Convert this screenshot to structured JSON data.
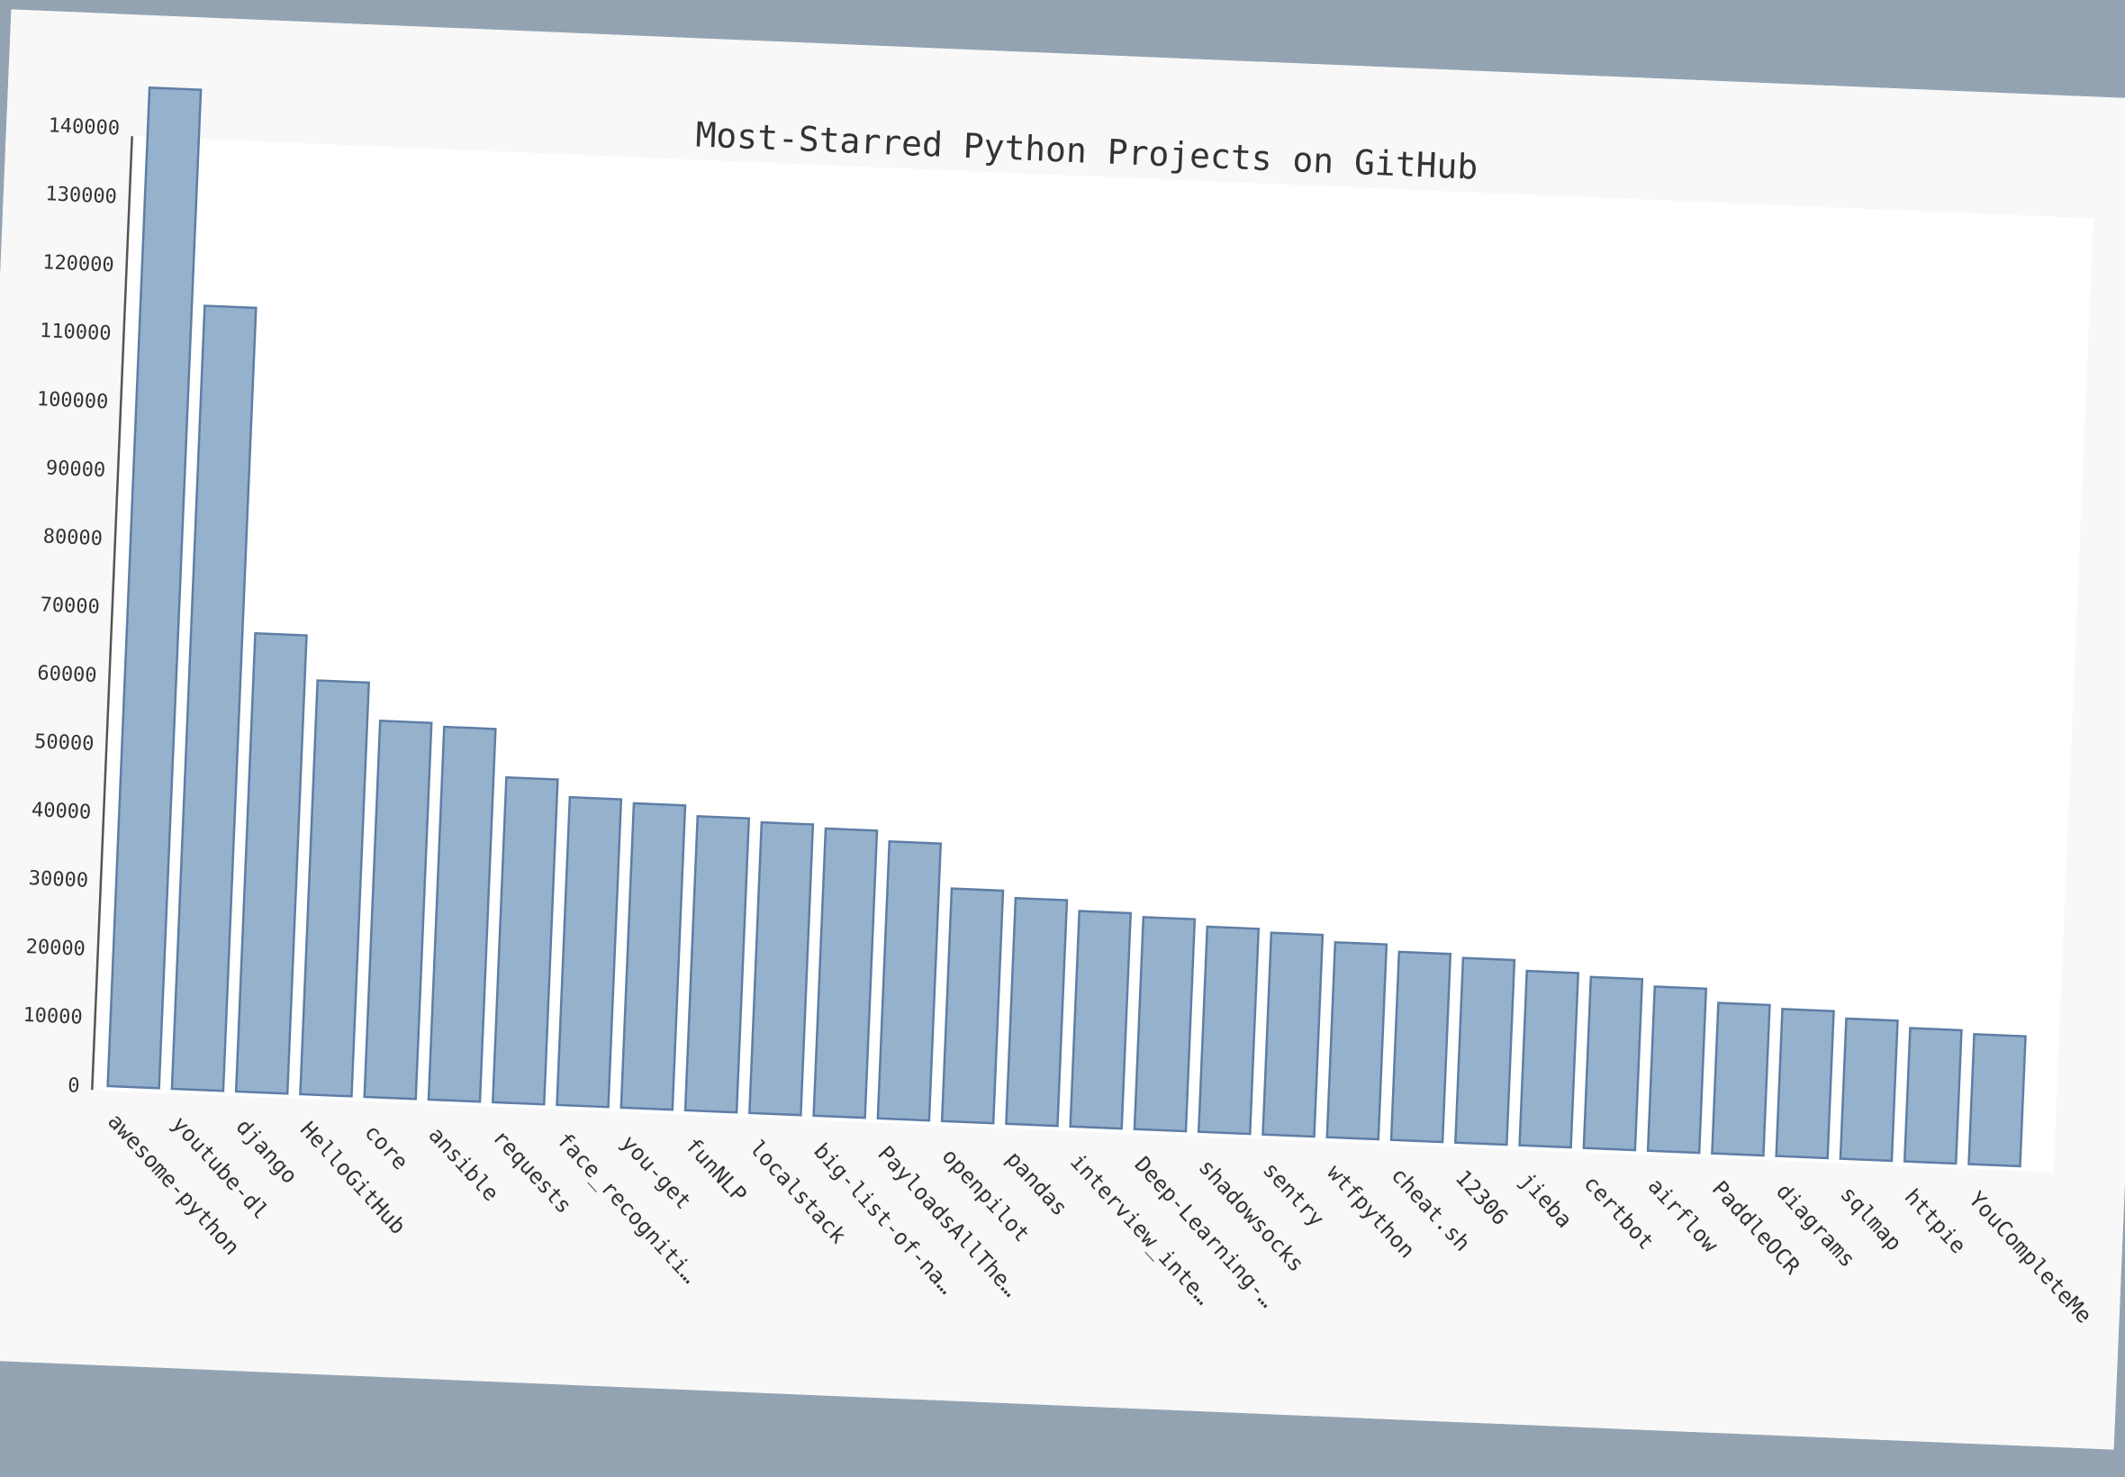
{
  "chart_data": {
    "type": "bar",
    "title": "Most-Starred Python Projects on GitHub",
    "xlabel": "",
    "ylabel": "",
    "ylim": [
      0,
      150000
    ],
    "yticks": [
      "0",
      "10000",
      "20000",
      "30000",
      "40000",
      "50000",
      "60000",
      "70000",
      "80000",
      "90000",
      "100000",
      "110000",
      "120000",
      "130000",
      "140000"
    ],
    "grid": false,
    "colors": {
      "bar_fill": "#96b1cc",
      "bar_stroke": "#5d7ea5",
      "background": "#f8f8f8",
      "frame": "#93a3b2"
    },
    "categories": [
      "awesome-python",
      "youtube-dl",
      "django",
      "HelloGitHub",
      "core",
      "ansible",
      "requests",
      "face_recogniti…",
      "you-get",
      "funNLP",
      "localstack",
      "big-list-of-na…",
      "PayloadsAllThe…",
      "openpilot",
      "pandas",
      "interview_inte…",
      "Deep-Learning-…",
      "shadowsocks",
      "sentry",
      "wtfpython",
      "cheat.sh",
      "12306",
      "jieba",
      "certbot",
      "airflow",
      "PaddleOCR",
      "diagrams",
      "sqlmap",
      "httpie",
      "YouCompleteMe"
    ],
    "values": [
      146000,
      114500,
      67000,
      60500,
      55000,
      54500,
      47500,
      45000,
      44500,
      43000,
      42500,
      42000,
      40500,
      34000,
      33000,
      31500,
      31000,
      30000,
      29500,
      28500,
      27500,
      27000,
      25500,
      25000,
      24000,
      22000,
      21500,
      20500,
      19500,
      19000
    ]
  }
}
